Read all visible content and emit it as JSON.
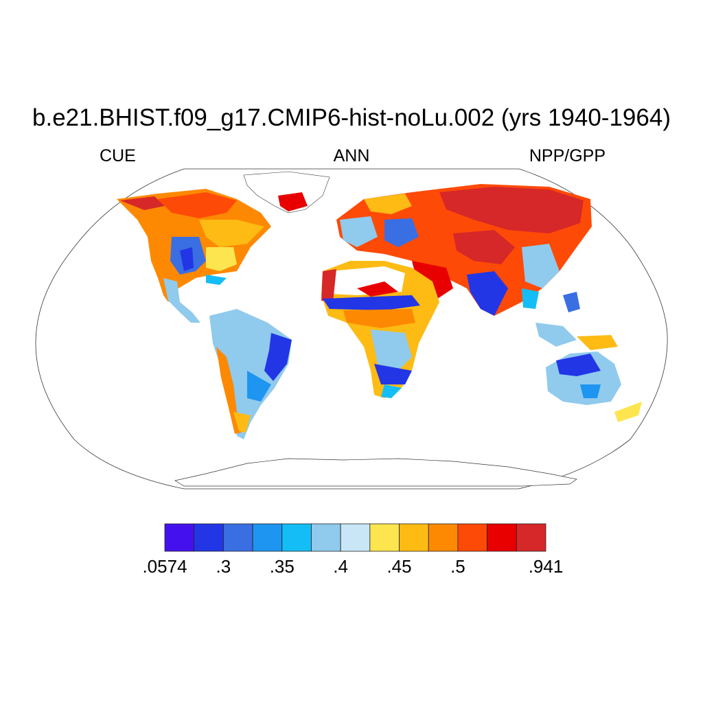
{
  "title": "b.e21.BHIST.f09_g17.CMIP6-hist-noLu.002 (yrs 1940-1964)",
  "subtitles": {
    "left": "CUE",
    "center": "ANN",
    "right": "NPP/GPP"
  },
  "colorbar": {
    "colors": [
      "#4411ee",
      "#2236e6",
      "#3a6ee3",
      "#1e95f0",
      "#14bdf5",
      "#90caed",
      "#c8e6f6",
      "#fde54f",
      "#fdbb14",
      "#fd8903",
      "#fe4a07",
      "#e80000",
      "#d62828"
    ],
    "tick_labels": [
      ".0574",
      ".3",
      ".35",
      ".4",
      ".45",
      ".5",
      ".941"
    ]
  },
  "land_color_scale": {
    "low": "#4411ee",
    "mid_low": "#90caed",
    "mid": "#fde54f",
    "mid_high": "#fd8903",
    "high": "#d62828"
  }
}
